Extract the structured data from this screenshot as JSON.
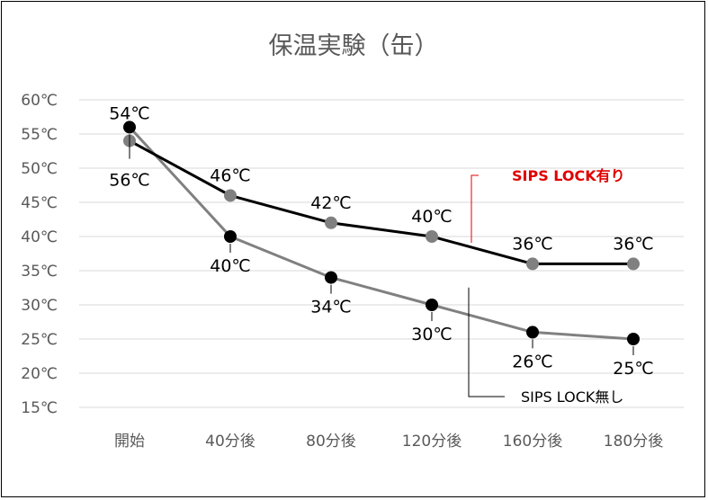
{
  "chart_data": {
    "type": "line",
    "title": "保温実験（缶）",
    "categories": [
      "開始",
      "40分後",
      "80分後",
      "120分後",
      "160分後",
      "180分後"
    ],
    "y_ticks": [
      "15℃",
      "20℃",
      "25℃",
      "30℃",
      "35℃",
      "40℃",
      "45℃",
      "50℃",
      "55℃",
      "60℃"
    ],
    "ylim": [
      15,
      60
    ],
    "grid": true,
    "series": [
      {
        "name": "SIPS LOCK有り",
        "line_color": "#000000",
        "marker_color": "#808080",
        "values": [
          54,
          46,
          42,
          40,
          36,
          36
        ],
        "labels": [
          "54℃",
          "46℃",
          "42℃",
          "40℃",
          "36℃",
          "36℃"
        ]
      },
      {
        "name": "SIPS LOCK無し",
        "line_color": "#808080",
        "marker_color": "#000000",
        "values": [
          56,
          40,
          34,
          30,
          26,
          25
        ],
        "labels": [
          "56℃",
          "40℃",
          "34℃",
          "30℃",
          "26℃",
          "25℃"
        ]
      }
    ]
  }
}
